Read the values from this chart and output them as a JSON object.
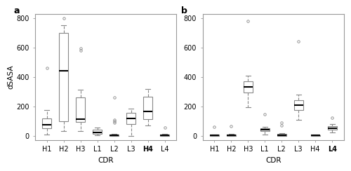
{
  "panel_a": {
    "labels": [
      "H1",
      "H2",
      "H3",
      "L1",
      "L2",
      "L3",
      "H4",
      "L4"
    ],
    "bold_label": "H4",
    "boxes": [
      {
        "med": 75,
        "q1": 50,
        "q3": 120,
        "whislo": 10,
        "whishi": 175,
        "fliers": [
          460
        ]
      },
      {
        "med": 440,
        "q1": 100,
        "q3": 700,
        "whislo": 30,
        "whishi": 750,
        "fliers": [
          800
        ]
      },
      {
        "med": 115,
        "q1": 95,
        "q3": 260,
        "whislo": 30,
        "whishi": 315,
        "fliers": [
          580,
          595
        ]
      },
      {
        "med": 25,
        "q1": 13,
        "q3": 40,
        "whislo": 5,
        "whishi": 55,
        "fliers": []
      },
      {
        "med": 5,
        "q1": 0,
        "q3": 10,
        "whislo": 0,
        "whishi": 15,
        "fliers": [
          90,
          100,
          110,
          260
        ]
      },
      {
        "med": 120,
        "q1": 80,
        "q3": 155,
        "whislo": 0,
        "whishi": 185,
        "fliers": []
      },
      {
        "med": 165,
        "q1": 115,
        "q3": 265,
        "whislo": 70,
        "whishi": 320,
        "fliers": []
      },
      {
        "med": 5,
        "q1": 0,
        "q3": 10,
        "whislo": 0,
        "whishi": 15,
        "fliers": [
          55
        ]
      }
    ],
    "ylim": [
      -30,
      830
    ],
    "yticks": [
      0,
      200,
      400,
      600,
      800
    ],
    "ylabel": "dSASA",
    "xlabel": "CDR"
  },
  "panel_b": {
    "labels": [
      "H1",
      "H2",
      "H3",
      "L1",
      "L2",
      "L3",
      "H4",
      "L4"
    ],
    "bold_label": "L4",
    "boxes": [
      {
        "med": 5,
        "q1": 0,
        "q3": 10,
        "whislo": 0,
        "whishi": 10,
        "fliers": [
          60
        ]
      },
      {
        "med": 5,
        "q1": 0,
        "q3": 10,
        "whislo": 0,
        "whishi": 15,
        "fliers": [
          65
        ]
      },
      {
        "med": 330,
        "q1": 295,
        "q3": 370,
        "whislo": 195,
        "whishi": 410,
        "fliers": [
          780
        ]
      },
      {
        "med": 40,
        "q1": 30,
        "q3": 50,
        "whislo": 10,
        "whishi": 60,
        "fliers": [
          145
        ]
      },
      {
        "med": 5,
        "q1": 0,
        "q3": 15,
        "whislo": 0,
        "whishi": 20,
        "fliers": [
          70,
          90
        ]
      },
      {
        "med": 210,
        "q1": 175,
        "q3": 240,
        "whislo": 110,
        "whishi": 280,
        "fliers": [
          640
        ]
      },
      {
        "med": 5,
        "q1": 0,
        "q3": 5,
        "whislo": 0,
        "whishi": 10,
        "fliers": []
      },
      {
        "med": 50,
        "q1": 40,
        "q3": 65,
        "whislo": 25,
        "whishi": 80,
        "fliers": [
          125
        ]
      }
    ],
    "ylim": [
      -30,
      830
    ],
    "yticks": [
      0,
      200,
      400,
      600,
      800
    ],
    "ylabel": "",
    "xlabel": "CDR"
  },
  "box_facecolor": "#ffffff",
  "box_edgecolor": "#888888",
  "median_color": "#000000",
  "whisker_color": "#888888",
  "flier_color": "#888888",
  "bg_color": "#ffffff",
  "plot_bg": "#ffffff",
  "label_fontsize": 7,
  "axis_fontsize": 7.5,
  "panel_label_fontsize": 9
}
